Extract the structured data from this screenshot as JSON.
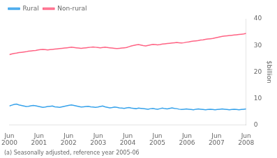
{
  "chart_data": {
    "type": "line",
    "ylabel": "$billion",
    "footnote": "(a) Seasonally adjusted, reference year 2005-06",
    "x": [
      0,
      0.9697,
      1.9394,
      2.9091,
      3.8788,
      4.8485,
      5.8182,
      6.7879,
      7.7576,
      8.7273,
      9.697,
      10.6667,
      11.6364,
      12.6061,
      13.5758,
      14.5455,
      15.5152,
      16.4848,
      17.4545,
      18.4242,
      19.3939,
      20.3636,
      21.3333,
      22.303,
      23.2727,
      24.2424,
      25.2121,
      26.1818,
      27.1515,
      28.1212,
      29.0909,
      30.0606,
      31.0303,
      32,
      32.9697,
      33.9394,
      34.9091,
      35.8788,
      36.8485,
      37.8182,
      38.7879,
      39.7576,
      40.7273,
      41.697,
      42.6667,
      43.6364,
      44.6061,
      45.5758,
      46.5455,
      47.5152,
      48.4848,
      49.4545,
      50.4242,
      51.3939,
      52.3636,
      53.3333,
      54.303,
      55.2727,
      56.2424,
      57.2121,
      58.1818,
      59.1515,
      60.1212,
      61.0909,
      62.0606,
      63.0303,
      64,
      64.9697,
      65.9394,
      66.9091,
      67.8788,
      68.8485,
      69.8182,
      70.7879,
      71.7576,
      72.7273,
      73.697,
      74.6667,
      75.6364,
      76.6061,
      77.5758,
      78.5455,
      79.5152,
      80.4848,
      81.4545,
      82.4242,
      83.3939,
      84.3636,
      85.3333,
      86.303,
      87.2727,
      88.2424,
      89.2121,
      90.1818,
      91.1515,
      92.1212,
      93.0909,
      94.0606,
      95.0303,
      96
    ],
    "series": [
      {
        "name": "Rural",
        "values": [
          7.2,
          7.5,
          7.8,
          7.9,
          7.6,
          7.4,
          7.2,
          7.0,
          7.1,
          7.3,
          7.4,
          7.3,
          7.1,
          6.9,
          6.7,
          6.8,
          7.0,
          7.1,
          7.2,
          6.9,
          6.8,
          6.7,
          6.9,
          7.1,
          7.3,
          7.5,
          7.6,
          7.4,
          7.2,
          7.0,
          6.8,
          6.9,
          7.0,
          7.1,
          6.9,
          6.8,
          6.7,
          6.8,
          7.0,
          7.2,
          6.9,
          6.7,
          6.5,
          6.6,
          6.8,
          6.7,
          6.5,
          6.4,
          6.3,
          6.5,
          6.6,
          6.4,
          6.3,
          6.2,
          6.4,
          6.3,
          6.2,
          6.1,
          6.0,
          6.2,
          6.3,
          6.1,
          6.0,
          6.2,
          6.4,
          6.2,
          6.1,
          6.3,
          6.5,
          6.3,
          6.2,
          6.0,
          5.9,
          6.0,
          6.1,
          6.0,
          5.9,
          5.8,
          6.0,
          6.1,
          6.0,
          5.9,
          5.8,
          5.9,
          6.0,
          5.9,
          5.8,
          5.9,
          6.0,
          6.1,
          6.0,
          5.9,
          5.8,
          5.9,
          6.0,
          5.9,
          5.8,
          5.9,
          6.0,
          6.1
        ]
      },
      {
        "name": "Non-rural",
        "values": [
          26.5,
          26.8,
          27.0,
          27.1,
          27.3,
          27.4,
          27.5,
          27.6,
          27.8,
          27.9,
          28.0,
          28.1,
          28.3,
          28.4,
          28.5,
          28.4,
          28.3,
          28.4,
          28.5,
          28.6,
          28.7,
          28.8,
          28.9,
          29.0,
          29.1,
          29.2,
          29.3,
          29.2,
          29.1,
          29.0,
          28.9,
          29.0,
          29.1,
          29.2,
          29.3,
          29.4,
          29.3,
          29.2,
          29.1,
          29.2,
          29.3,
          29.2,
          29.1,
          29.0,
          28.9,
          28.8,
          28.9,
          29.0,
          29.1,
          29.2,
          29.5,
          29.8,
          30.0,
          30.2,
          30.3,
          30.1,
          29.9,
          29.8,
          30.0,
          30.2,
          30.4,
          30.3,
          30.2,
          30.3,
          30.5,
          30.6,
          30.7,
          30.8,
          30.9,
          31.0,
          31.1,
          31.0,
          30.9,
          31.0,
          31.2,
          31.3,
          31.5,
          31.6,
          31.7,
          31.8,
          32.0,
          32.1,
          32.3,
          32.4,
          32.5,
          32.6,
          32.8,
          33.0,
          33.2,
          33.4,
          33.5,
          33.6,
          33.7,
          33.8,
          33.9,
          34.0,
          34.1,
          34.2,
          34.3,
          34.5
        ]
      }
    ],
    "xlim": [
      0,
      96
    ],
    "xticks": [
      {
        "value": 0,
        "label": "Jun\n2000"
      },
      {
        "value": 12,
        "label": "Jun\n2001"
      },
      {
        "value": 24,
        "label": "Jun\n2002"
      },
      {
        "value": 36,
        "label": "Jun\n2003"
      },
      {
        "value": 48,
        "label": "Jun\n2004"
      },
      {
        "value": 60,
        "label": "Jun\n2005"
      },
      {
        "value": 72,
        "label": "Jun\n2006"
      },
      {
        "value": 84,
        "label": "Jun\n2007"
      },
      {
        "value": 96,
        "label": "Jun\n2008"
      }
    ],
    "ylim": [
      0,
      40
    ],
    "yticks": [
      0,
      10,
      20,
      30,
      40
    ],
    "grid": false,
    "legend": "upper left"
  }
}
